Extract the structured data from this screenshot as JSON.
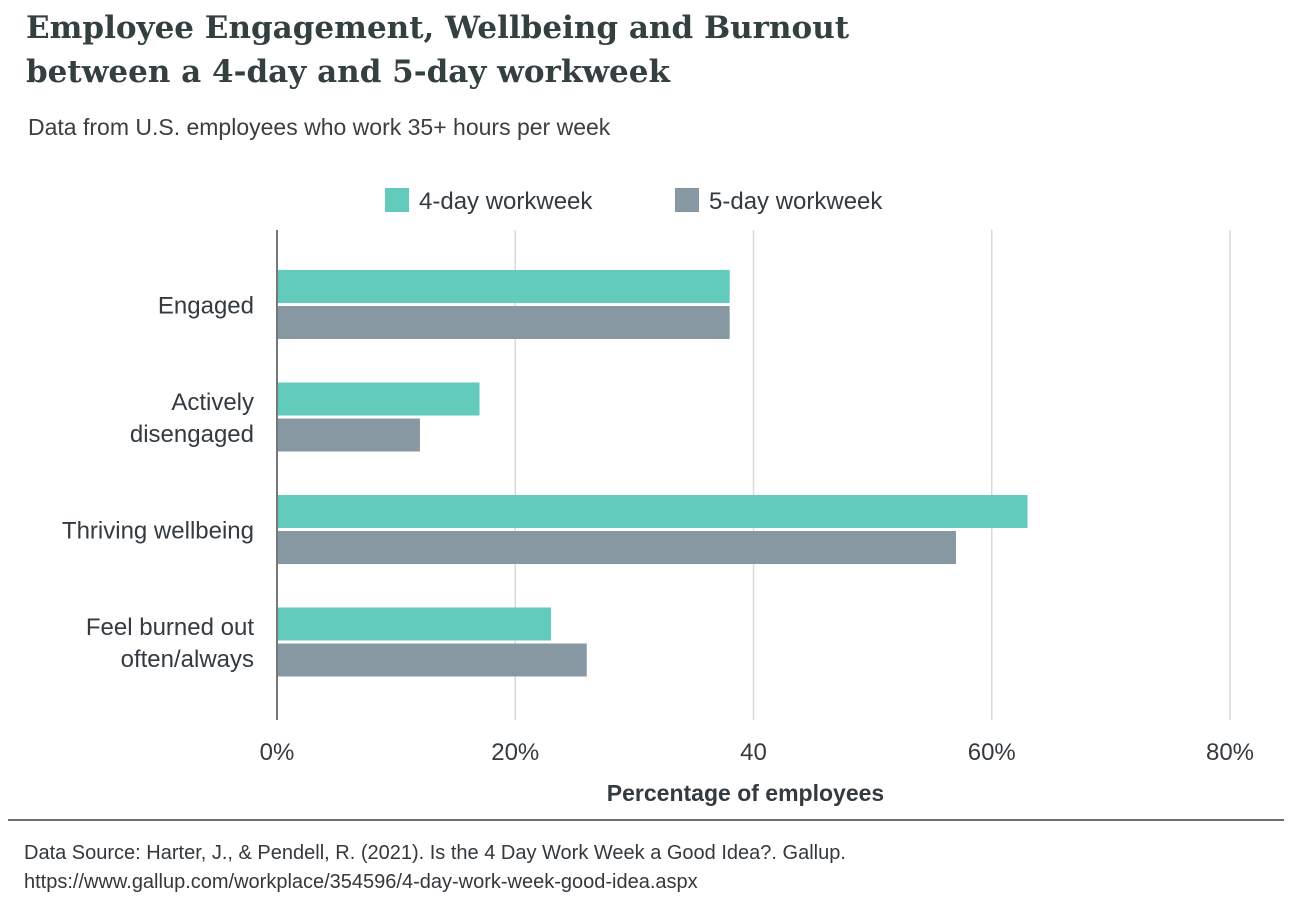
{
  "title_line1": "Employee Engagement, Wellbeing and Burnout",
  "title_line2": "between a 4-day and 5-day workweek",
  "subtitle": "Data from U.S. employees who work 35+ hours per week",
  "source_line1": "Data Source: Harter, J., & Pendell, R. (2021). Is the 4 Day Work Week a Good Idea?. Gallup.",
  "source_line2": "https://www.gallup.com/workplace/354596/4-day-work-week-good-idea.aspx",
  "chart_data": {
    "type": "bar",
    "orientation": "horizontal",
    "categories": [
      [
        "Engaged"
      ],
      [
        "Actively",
        "disengaged"
      ],
      [
        "Thriving wellbeing"
      ],
      [
        "Feel burned out",
        "often/always"
      ]
    ],
    "series": [
      {
        "name": "4-day workweek",
        "color": "#62cbbb",
        "values": [
          38,
          17,
          63,
          23
        ]
      },
      {
        "name": "5-day workweek",
        "color": "#8898a3",
        "values": [
          38,
          12,
          57,
          26
        ]
      }
    ],
    "xlabel": "Percentage of employees",
    "xlim": [
      0,
      80
    ],
    "xticks": [
      {
        "value": 0,
        "label": "0%"
      },
      {
        "value": 20,
        "label": "20%"
      },
      {
        "value": 40,
        "label": "40"
      },
      {
        "value": 60,
        "label": "60%"
      },
      {
        "value": 80,
        "label": "80%"
      }
    ],
    "grid": true,
    "legend_position": "top-center"
  }
}
